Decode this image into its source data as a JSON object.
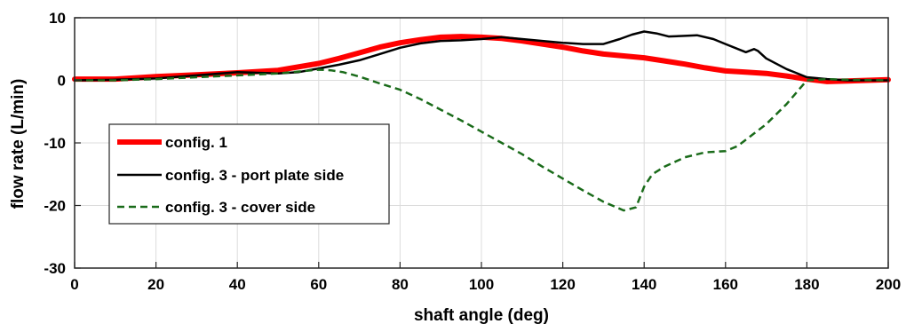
{
  "chart_data": {
    "type": "line",
    "xlabel": "shaft angle (deg)",
    "ylabel": "flow rate (L/min)",
    "xlim": [
      0,
      200
    ],
    "ylim": [
      -30,
      10
    ],
    "x_ticks": [
      0,
      20,
      40,
      60,
      80,
      100,
      120,
      140,
      160,
      180,
      200
    ],
    "y_ticks": [
      10,
      0,
      -10,
      -20,
      -30
    ],
    "grid": true,
    "legend_position": "left",
    "series": [
      {
        "name": "config. 1",
        "color": "#ff0000",
        "style": "solid-thick",
        "x": [
          0,
          10,
          20,
          30,
          40,
          50,
          60,
          65,
          70,
          75,
          80,
          85,
          90,
          95,
          100,
          105,
          110,
          115,
          120,
          125,
          130,
          135,
          140,
          145,
          150,
          155,
          160,
          165,
          170,
          175,
          180,
          185,
          190,
          200
        ],
        "y": [
          0.2,
          0.2,
          0.6,
          0.9,
          1.2,
          1.6,
          2.7,
          3.5,
          4.4,
          5.3,
          6.0,
          6.5,
          6.9,
          7.0,
          6.9,
          6.7,
          6.3,
          5.8,
          5.3,
          4.7,
          4.2,
          3.9,
          3.6,
          3.1,
          2.6,
          2.0,
          1.5,
          1.3,
          1.1,
          0.7,
          0.2,
          -0.2,
          -0.1,
          0.1
        ]
      },
      {
        "name": "config. 3 - port plate side",
        "color": "#000000",
        "style": "solid",
        "x": [
          0,
          10,
          20,
          30,
          40,
          50,
          55,
          60,
          65,
          70,
          75,
          80,
          85,
          90,
          95,
          100,
          105,
          110,
          115,
          120,
          125,
          130,
          134,
          137,
          140,
          143,
          146,
          150,
          153,
          157,
          160,
          165,
          167,
          168,
          170,
          175,
          180,
          185,
          190,
          200
        ],
        "y": [
          0.0,
          0.1,
          0.3,
          0.8,
          1.3,
          1.1,
          1.3,
          1.9,
          2.5,
          3.2,
          4.2,
          5.2,
          5.9,
          6.3,
          6.4,
          6.6,
          6.9,
          6.6,
          6.3,
          6.0,
          5.8,
          5.8,
          6.6,
          7.3,
          7.8,
          7.5,
          7.0,
          7.1,
          7.2,
          6.6,
          5.8,
          4.5,
          5.0,
          4.7,
          3.5,
          1.8,
          0.5,
          0.2,
          0.0,
          0.0
        ]
      },
      {
        "name": "config. 3 - cover side",
        "color": "#1a6b1a",
        "style": "dashed",
        "x": [
          0,
          10,
          20,
          30,
          40,
          50,
          55,
          60,
          63,
          66,
          70,
          75,
          80,
          85,
          90,
          95,
          100,
          105,
          110,
          115,
          120,
          125,
          130,
          135,
          138,
          140,
          142,
          145,
          150,
          155,
          160,
          163,
          167,
          170,
          175,
          180,
          185,
          190,
          200
        ],
        "y": [
          0.0,
          0.0,
          0.2,
          0.5,
          0.8,
          1.1,
          1.4,
          1.7,
          1.6,
          1.3,
          0.6,
          -0.5,
          -1.5,
          -3.0,
          -4.7,
          -6.4,
          -8.2,
          -10.0,
          -11.8,
          -13.8,
          -15.7,
          -17.6,
          -19.4,
          -20.8,
          -20.3,
          -17.0,
          -15.0,
          -13.8,
          -12.3,
          -11.5,
          -11.3,
          -10.5,
          -8.5,
          -7.0,
          -3.8,
          0.0,
          0.2,
          0.1,
          0.0
        ]
      }
    ]
  }
}
